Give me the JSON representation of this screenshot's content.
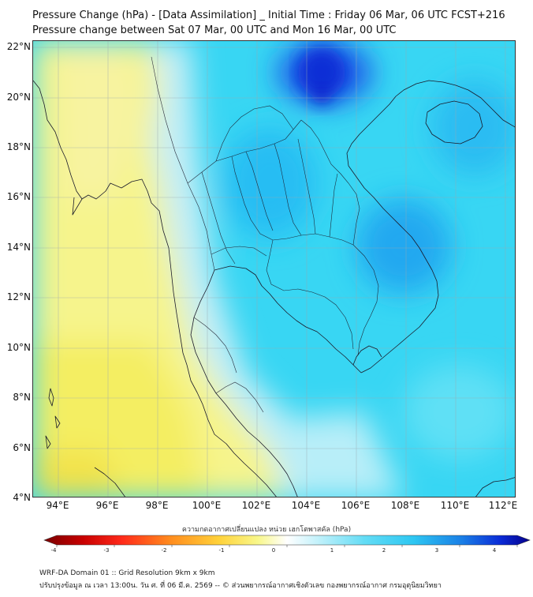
{
  "header": {
    "title_line1": "Pressure Change (hPa) - [Data Assimilation] _ Initial Time : Friday 06 Mar, 06 UTC FCST+216",
    "title_line2": "Pressure change between Sat 07 Mar, 00 UTC and Mon 16 Mar, 00 UTC"
  },
  "map": {
    "lat_labels": [
      "22°N",
      "20°N",
      "18°N",
      "16°N",
      "14°N",
      "12°N",
      "10°N",
      "8°N",
      "6°N",
      "4°N"
    ],
    "lon_labels": [
      "94°E",
      "96°E",
      "98°E",
      "100°E",
      "102°E",
      "104°E",
      "106°E",
      "108°E",
      "110°E",
      "112°E"
    ],
    "colors": {
      "ocean_base": "#33d4f2",
      "land_base": "#4ad8f0",
      "positive_max": "#0a1fd8",
      "negative": "#f7f27a",
      "boundary": "#1a1a2a"
    }
  },
  "colorbar": {
    "title": "ความกดอากาศเปลี่ยนแปลง หน่วย เฮกโตพาสคัล (hPa)",
    "ticks": [
      "-4",
      "-3",
      "-2",
      "-1",
      "0",
      "1",
      "2",
      "3",
      "4"
    ]
  },
  "footer": {
    "line1": "WRF-DA Domain 01 :: Grid Resolution 9km x 9km",
    "line2": "ปรับปรุงข้อมูล ณ เวลา 13:00น. วัน ศ. ที่ 06 มี.ค. 2569 -- © ส่วนพยากรณ์อากาศเชิงตัวเลข กองพยากรณ์อากาศ กรมอุตุนิยมวิทยา"
  }
}
